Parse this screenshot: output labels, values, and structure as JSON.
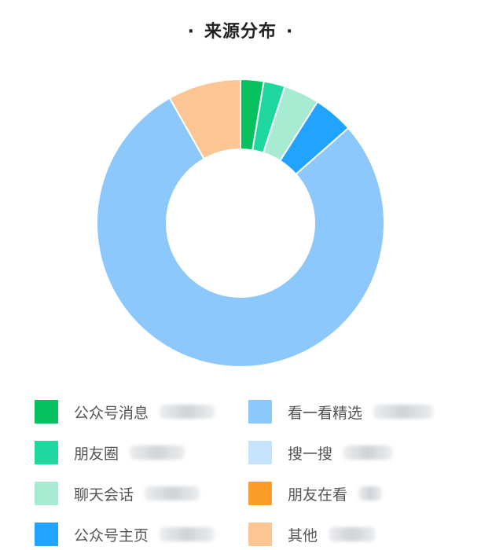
{
  "title": "来源分布",
  "chart_data": {
    "type": "pie",
    "title": "来源分布",
    "slices": [
      {
        "name": "公众号消息",
        "value": 2.6,
        "color": "#07c160"
      },
      {
        "name": "朋友圈",
        "value": 2.4,
        "color": "#1fd8a0"
      },
      {
        "name": "聊天会话",
        "value": 4.0,
        "color": "#a8ebd3"
      },
      {
        "name": "公众号主页",
        "value": 4.5,
        "color": "#22a3ff"
      },
      {
        "name": "看一看精选",
        "value": 78.3,
        "color": "#8cc8fb"
      },
      {
        "name": "搜一搜",
        "value": 0.0,
        "color": "#c6e3fd"
      },
      {
        "name": "朋友在看",
        "value": 0.0,
        "color": "#fa9d29"
      },
      {
        "name": "其他",
        "value": 8.2,
        "color": "#fbc694"
      }
    ]
  },
  "legend": [
    {
      "label": "公众号消息",
      "color": "#07c160"
    },
    {
      "label": "看一看精选",
      "color": "#8cc8fb"
    },
    {
      "label": "朋友圈",
      "color": "#1fd8a0"
    },
    {
      "label": "搜一搜",
      "color": "#c6e3fd"
    },
    {
      "label": "聊天会话",
      "color": "#a8ebd3"
    },
    {
      "label": "朋友在看",
      "color": "#fa9d29"
    },
    {
      "label": "公众号主页",
      "color": "#22a3ff"
    },
    {
      "label": "其他",
      "color": "#fbc694"
    }
  ]
}
